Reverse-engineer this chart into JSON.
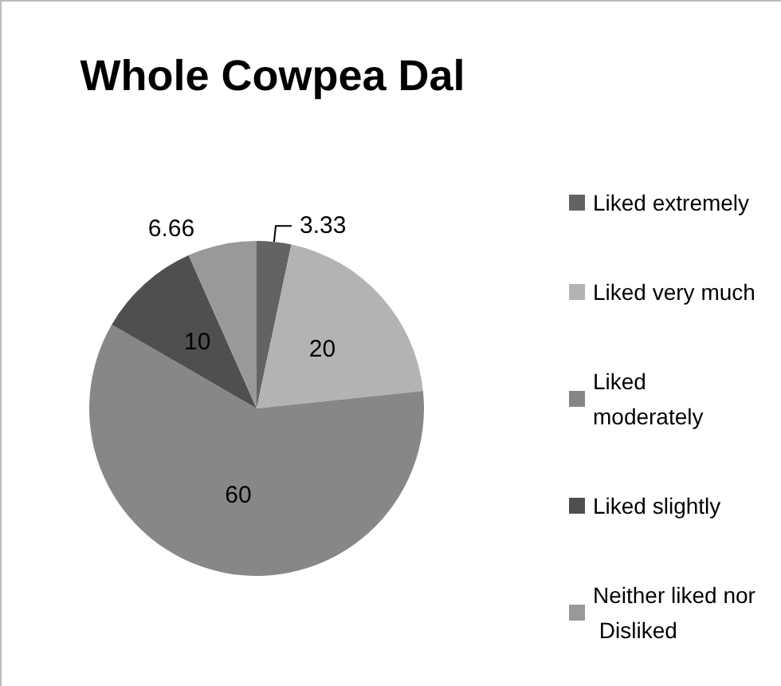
{
  "chart_data": {
    "type": "pie",
    "title": "Whole Cowpea Dal",
    "categories": [
      "Liked extremely",
      "Liked very much",
      "Liked moderately",
      "Liked slightly",
      "Neither liked nor Disliked"
    ],
    "values": [
      3.33,
      20,
      60,
      10,
      6.66
    ],
    "colors": [
      "#636363",
      "#b3b3b3",
      "#878787",
      "#4f4f4f",
      "#999999"
    ],
    "data_labels": true,
    "legend": "right"
  }
}
